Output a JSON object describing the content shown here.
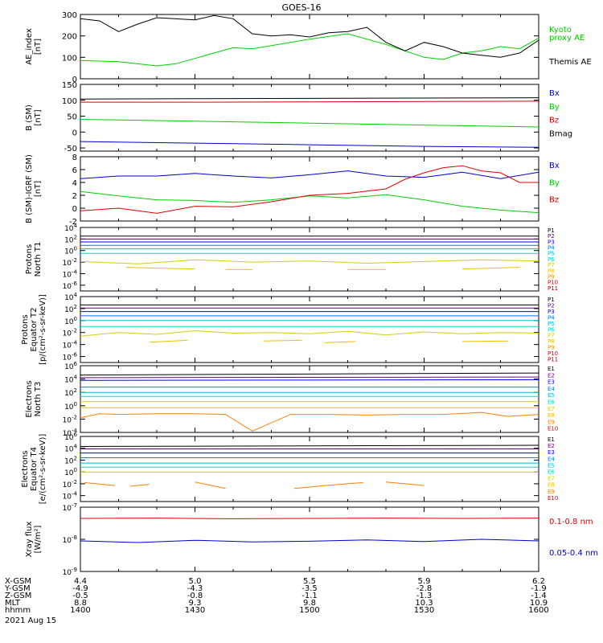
{
  "title": "GOES-16",
  "date_label": "2021 Aug 15",
  "colors": {
    "black": "#000000",
    "red": "#e00000",
    "green": "#00d000",
    "blue": "#0000d0",
    "p_channels": [
      "#000000",
      "#5a0078",
      "#0000ff",
      "#0070ff",
      "#00b8e8",
      "#00d8c0",
      "#d0d000",
      "#f0c000",
      "#ff9000",
      "#d80000",
      "#b00000"
    ],
    "e_channels": [
      "#000000",
      "#6a0080",
      "#0000ff",
      "#0080ff",
      "#00b8e8",
      "#00d8c0",
      "#d0d000",
      "#f0c000",
      "#ff8000",
      "#d80000"
    ]
  },
  "orbit_table": {
    "row_labels": [
      "X-GSM",
      "Y-GSM",
      "Z-GSM",
      "MLT",
      "hhmm"
    ],
    "columns": [
      [
        "4.4",
        "-4.9",
        "-0.5",
        "8.8",
        "1400"
      ],
      [
        "5.0",
        "-4.3",
        "-0.8",
        "9.3",
        "1430"
      ],
      [
        "5.5",
        "-3.5",
        "-1.1",
        "9.8",
        "1500"
      ],
      [
        "5.9",
        "-2.8",
        "-1.3",
        "10.3",
        "1530"
      ],
      [
        "6.2",
        "-1.9",
        "-1.4",
        "10.9",
        "1600"
      ]
    ]
  },
  "chart_data": [
    {
      "type": "line",
      "ylabel": [
        "AE_index",
        "[nT]"
      ],
      "ylim": [
        0,
        300
      ],
      "yticks": [
        "0",
        "100",
        "200",
        "300"
      ],
      "scale": "linear",
      "x_range_minutes": [
        0,
        120
      ],
      "series": [
        {
          "name": "Kyoto proxy AE",
          "color": "green",
          "x": [
            0,
            10,
            20,
            25,
            30,
            40,
            45,
            50,
            60,
            70,
            80,
            90,
            95,
            100,
            105,
            110,
            115,
            120
          ],
          "y": [
            85,
            80,
            60,
            70,
            95,
            145,
            140,
            155,
            185,
            210,
            160,
            100,
            90,
            120,
            130,
            150,
            140,
            190
          ]
        },
        {
          "name": "Themis AE",
          "color": "black",
          "x": [
            0,
            5,
            10,
            15,
            20,
            30,
            35,
            40,
            45,
            50,
            55,
            60,
            65,
            70,
            75,
            80,
            85,
            90,
            95,
            100,
            105,
            110,
            115,
            120
          ],
          "y": [
            280,
            270,
            220,
            255,
            285,
            275,
            295,
            280,
            210,
            200,
            205,
            195,
            215,
            220,
            240,
            170,
            130,
            170,
            150,
            120,
            110,
            100,
            120,
            180
          ]
        }
      ],
      "legend": [
        {
          "text": "Kyoto",
          "color": "green"
        },
        {
          "text": "proxy AE",
          "color": "green"
        },
        {
          "text": "Themis AE",
          "color": "black"
        }
      ]
    },
    {
      "type": "line",
      "ylabel": [
        "B (SM)",
        "[nT]"
      ],
      "ylim": [
        -60,
        150
      ],
      "yticks": [
        "-50",
        "0",
        "50",
        "100",
        "150"
      ],
      "scale": "linear",
      "series": [
        {
          "name": "Bx",
          "color": "blue",
          "x": [
            0,
            30,
            60,
            90,
            120
          ],
          "y": [
            -30,
            -35,
            -40,
            -45,
            -48
          ]
        },
        {
          "name": "By",
          "color": "green",
          "x": [
            0,
            30,
            60,
            90,
            120
          ],
          "y": [
            40,
            34,
            28,
            22,
            16
          ]
        },
        {
          "name": "Bz",
          "color": "red",
          "x": [
            0,
            30,
            60,
            90,
            120
          ],
          "y": [
            94,
            94,
            95,
            96,
            97
          ]
        },
        {
          "name": "Bmag",
          "color": "black",
          "x": [
            0,
            30,
            60,
            90,
            120
          ],
          "y": [
            104,
            105,
            106,
            107,
            108
          ]
        }
      ],
      "legend": [
        {
          "text": "Bx",
          "color": "blue"
        },
        {
          "text": "By",
          "color": "green"
        },
        {
          "text": "Bz",
          "color": "red"
        },
        {
          "text": "Bmag",
          "color": "black"
        }
      ]
    },
    {
      "type": "line",
      "ylabel": [
        "B (SM)-IGRF (SM)",
        "[nT]"
      ],
      "ylim": [
        -2,
        8
      ],
      "yticks": [
        "-2",
        "0",
        "2",
        "4",
        "6",
        "8"
      ],
      "scale": "linear",
      "series": [
        {
          "name": "Bx",
          "color": "blue",
          "x": [
            0,
            10,
            20,
            30,
            40,
            50,
            60,
            70,
            80,
            90,
            100,
            110,
            120
          ],
          "y": [
            4.6,
            5.0,
            5.0,
            5.4,
            5.0,
            4.7,
            5.2,
            5.8,
            5.0,
            4.8,
            5.6,
            4.6,
            5.6
          ]
        },
        {
          "name": "By",
          "color": "green",
          "x": [
            0,
            10,
            20,
            30,
            40,
            50,
            60,
            70,
            80,
            90,
            100,
            110,
            120
          ],
          "y": [
            2.6,
            1.9,
            1.3,
            1.2,
            0.9,
            1.3,
            1.9,
            1.6,
            2.1,
            1.3,
            0.3,
            -0.3,
            -0.7
          ]
        },
        {
          "name": "Bz",
          "color": "red",
          "x": [
            0,
            10,
            20,
            30,
            40,
            50,
            60,
            70,
            80,
            85,
            90,
            95,
            100,
            105,
            110,
            115,
            120
          ],
          "y": [
            -0.4,
            0.0,
            -0.8,
            0.3,
            0.2,
            1.0,
            2.0,
            2.3,
            3.0,
            4.5,
            5.5,
            6.3,
            6.6,
            5.8,
            5.5,
            4.0,
            4.0
          ]
        }
      ],
      "legend": [
        {
          "text": "Bx",
          "color": "blue"
        },
        {
          "text": "By",
          "color": "green"
        },
        {
          "text": "Bz",
          "color": "red"
        }
      ]
    },
    {
      "type": "line",
      "ylabel": [
        "Protons",
        "North T1"
      ],
      "scale": "log",
      "ylim_log10": [
        -7,
        4
      ],
      "yticks": [
        "10^4",
        "10^2",
        "10^0",
        "10^-2",
        "10^-4",
        "10^-6"
      ],
      "channels": [
        "P1",
        "P2",
        "P3",
        "P4",
        "P5",
        "P6",
        "P7",
        "P8",
        "P9",
        "P10",
        "P11"
      ],
      "series_log10": [
        {
          "name": "P1",
          "x": [
            0,
            120
          ],
          "y": [
            2.5,
            2.5
          ]
        },
        {
          "name": "P2",
          "x": [
            0,
            120
          ],
          "y": [
            2.0,
            2.0
          ]
        },
        {
          "name": "P3",
          "x": [
            0,
            120
          ],
          "y": [
            1.5,
            1.5
          ]
        },
        {
          "name": "P4",
          "x": [
            0,
            120
          ],
          "y": [
            0.9,
            0.9
          ]
        },
        {
          "name": "P5",
          "x": [
            0,
            120
          ],
          "y": [
            0.3,
            0.3
          ]
        },
        {
          "name": "P6",
          "x": [
            0,
            120
          ],
          "y": [
            -0.5,
            -0.5
          ]
        },
        {
          "name": "P7",
          "x": [
            0,
            15,
            30,
            45,
            60,
            75,
            90,
            105,
            120
          ],
          "y": [
            -1.9,
            -2.3,
            -1.6,
            -2.0,
            -1.8,
            -2.2,
            -1.9,
            -1.6,
            -1.8
          ]
        }
      ],
      "series_segments": [
        {
          "name": "P8",
          "segments": [
            [
              [
                12,
                -2.9
              ],
              [
                30,
                -3.2
              ]
            ],
            [
              [
                38,
                -3.3
              ],
              [
                45,
                -3.3
              ]
            ],
            [
              [
                70,
                -3.3
              ],
              [
                80,
                -3.3
              ]
            ],
            [
              [
                100,
                -3.2
              ],
              [
                115,
                -2.9
              ]
            ]
          ]
        }
      ]
    },
    {
      "type": "line",
      "ylabel": [
        "Protons",
        "Equator T2",
        "[p/(cm²-s-sr-keV)]"
      ],
      "scale": "log",
      "ylim_log10": [
        -7,
        4
      ],
      "yticks": [
        "10^4",
        "10^2",
        "10^0",
        "10^-2",
        "10^-4",
        "10^-6"
      ],
      "channels": [
        "P1",
        "P2",
        "P3",
        "P4",
        "P5",
        "P6",
        "P7",
        "P8",
        "P9",
        "P10",
        "P11"
      ],
      "series_log10": [
        {
          "name": "P1",
          "x": [
            0,
            120
          ],
          "y": [
            2.6,
            2.6
          ]
        },
        {
          "name": "P2",
          "x": [
            0,
            120
          ],
          "y": [
            2.1,
            2.1
          ]
        },
        {
          "name": "P3",
          "x": [
            0,
            120
          ],
          "y": [
            1.5,
            1.5
          ]
        },
        {
          "name": "P4",
          "x": [
            0,
            120
          ],
          "y": [
            0.8,
            0.8
          ]
        },
        {
          "name": "P5",
          "x": [
            0,
            120
          ],
          "y": [
            0.0,
            0.0
          ]
        },
        {
          "name": "P6",
          "x": [
            0,
            120
          ],
          "y": [
            -1.0,
            -1.0
          ]
        },
        {
          "name": "P7",
          "x": [
            0,
            10,
            20,
            30,
            40,
            50,
            60,
            70,
            80,
            90,
            100,
            110,
            120
          ],
          "y": [
            -2.6,
            -2.0,
            -2.3,
            -1.7,
            -2.1,
            -2.0,
            -2.2,
            -1.8,
            -2.4,
            -1.9,
            -2.2,
            -2.0,
            -2.1
          ]
        }
      ],
      "series_segments": [
        {
          "name": "P8",
          "segments": [
            [
              [
                18,
                -3.6
              ],
              [
                28,
                -3.3
              ]
            ],
            [
              [
                48,
                -3.4
              ],
              [
                58,
                -3.3
              ]
            ],
            [
              [
                64,
                -3.7
              ],
              [
                72,
                -3.5
              ]
            ],
            [
              [
                100,
                -3.5
              ],
              [
                112,
                -3.4
              ]
            ]
          ]
        }
      ]
    },
    {
      "type": "line",
      "ylabel": [
        "Electrons",
        "North T3"
      ],
      "scale": "log",
      "ylim_log10": [
        -4,
        6
      ],
      "yticks": [
        "10^6",
        "10^4",
        "10^2",
        "10^0",
        "10^-2",
        "10^-4"
      ],
      "channels": [
        "E1",
        "E2",
        "E3",
        "E4",
        "E5",
        "E6",
        "E7",
        "E8",
        "E9",
        "E10"
      ],
      "series_log10": [
        {
          "name": "E1",
          "x": [
            0,
            120
          ],
          "y": [
            4.6,
            4.9
          ]
        },
        {
          "name": "E2",
          "x": [
            0,
            120
          ],
          "y": [
            4.2,
            4.3
          ]
        },
        {
          "name": "E3",
          "x": [
            0,
            120
          ],
          "y": [
            3.8,
            3.9
          ]
        },
        {
          "name": "E4",
          "x": [
            0,
            120
          ],
          "y": [
            2.8,
            2.8
          ]
        },
        {
          "name": "E5",
          "x": [
            0,
            120
          ],
          "y": [
            2.0,
            2.0
          ]
        },
        {
          "name": "E6",
          "x": [
            0,
            120
          ],
          "y": [
            1.4,
            1.4
          ]
        },
        {
          "name": "E7",
          "x": [
            0,
            120
          ],
          "y": [
            0.6,
            0.6
          ]
        },
        {
          "name": "E8",
          "x": [
            0,
            120
          ],
          "y": [
            -0.3,
            -0.3
          ]
        },
        {
          "name": "E9",
          "x": [
            0,
            5,
            10,
            20,
            30,
            38,
            45,
            55,
            65,
            75,
            85,
            95,
            105,
            112,
            120
          ],
          "y": [
            -1.8,
            -1.2,
            -1.3,
            -1.2,
            -1.2,
            -1.3,
            -3.8,
            -1.3,
            -1.3,
            -1.4,
            -1.3,
            -1.3,
            -1.0,
            -1.6,
            -1.3
          ]
        }
      ]
    },
    {
      "type": "line",
      "ylabel": [
        "Electrons",
        "Equator T4",
        "[e/(cm²-s-sr-keV)]"
      ],
      "scale": "log",
      "ylim_log10": [
        -5,
        6
      ],
      "yticks": [
        "10^6",
        "10^4",
        "10^2",
        "10^0",
        "10^-2",
        "10^-4"
      ],
      "channels": [
        "E1",
        "E2",
        "E3",
        "E4",
        "E5",
        "E6",
        "E7",
        "E8",
        "E9",
        "E10"
      ],
      "series_log10": [
        {
          "name": "E1",
          "x": [
            0,
            120
          ],
          "y": [
            4.3,
            4.5
          ]
        },
        {
          "name": "E2",
          "x": [
            0,
            120
          ],
          "y": [
            3.9,
            3.9
          ]
        },
        {
          "name": "E3",
          "x": [
            0,
            120
          ],
          "y": [
            3.2,
            3.2
          ]
        },
        {
          "name": "E4",
          "x": [
            0,
            120
          ],
          "y": [
            2.4,
            2.4
          ]
        },
        {
          "name": "E5",
          "x": [
            0,
            120
          ],
          "y": [
            1.5,
            1.5
          ]
        },
        {
          "name": "E6",
          "x": [
            0,
            120
          ],
          "y": [
            0.8,
            0.8
          ]
        },
        {
          "name": "E7",
          "x": [
            0,
            120
          ],
          "y": [
            0.0,
            0.0
          ]
        }
      ],
      "series_segments": [
        {
          "name": "E9",
          "segments": [
            [
              [
                1,
                -1.8
              ],
              [
                9,
                -2.3
              ]
            ],
            [
              [
                13,
                -2.4
              ],
              [
                18,
                -2.1
              ]
            ],
            [
              [
                30,
                -1.7
              ],
              [
                38,
                -2.8
              ]
            ],
            [
              [
                56,
                -2.8
              ],
              [
                64,
                -2.3
              ]
            ],
            [
              [
                64,
                -2.3
              ],
              [
                74,
                -1.8
              ]
            ],
            [
              [
                80,
                -1.7
              ],
              [
                90,
                -2.3
              ]
            ]
          ]
        }
      ]
    },
    {
      "type": "line",
      "ylabel": [
        "Xray flux",
        "[W/m²]"
      ],
      "scale": "log",
      "ylim_log10": [
        -9,
        -7
      ],
      "yticks": [
        "10^-7",
        "10^-8",
        "10^-9"
      ],
      "series": [
        {
          "name": "0.1-0.8 nm",
          "color": "red",
          "x": [
            0,
            20,
            40,
            60,
            80,
            100,
            120
          ],
          "y_log10": [
            -7.35,
            -7.34,
            -7.36,
            -7.35,
            -7.34,
            -7.35,
            -7.34
          ]
        },
        {
          "name": "0.05-0.4 nm",
          "color": "blue",
          "x": [
            0,
            15,
            30,
            45,
            60,
            75,
            90,
            105,
            120
          ],
          "y_log10": [
            -8.05,
            -8.1,
            -8.03,
            -8.08,
            -8.06,
            -8.02,
            -8.07,
            -8.0,
            -8.05
          ]
        }
      ],
      "legend": [
        {
          "text": "0.1-0.8 nm",
          "color": "red"
        },
        {
          "text": "0.05-0.4 nm",
          "color": "blue"
        }
      ]
    }
  ]
}
